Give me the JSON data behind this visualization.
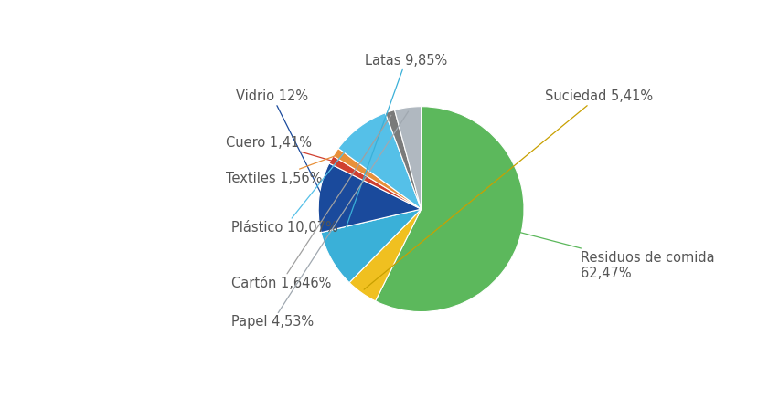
{
  "slices": [
    {
      "label": "Residuos de comida\n62,47%",
      "value": 62.47,
      "color": "#5cb85c",
      "line_color": "#5cb85c"
    },
    {
      "label": "Suciedad 5,41%",
      "value": 5.41,
      "color": "#f0c020",
      "line_color": "#c8a000"
    },
    {
      "label": "Latas 9,85%",
      "value": 9.85,
      "color": "#3ab0d8",
      "line_color": "#3ab0d8"
    },
    {
      "label": "Vidrio 12%",
      "value": 12.0,
      "color": "#1a4a9c",
      "line_color": "#1a4a9c"
    },
    {
      "label": "Cuero 1,41%",
      "value": 1.41,
      "color": "#d04030",
      "line_color": "#d04030"
    },
    {
      "label": "Textiles 1,56%",
      "value": 1.56,
      "color": "#e8903a",
      "line_color": "#e8903a"
    },
    {
      "label": "Plástico 10,07%",
      "value": 10.07,
      "color": "#55c0e8",
      "line_color": "#55c0e8"
    },
    {
      "label": "Cartón 1,646%",
      "value": 1.646,
      "color": "#7a7a7a",
      "line_color": "#a0a0a0"
    },
    {
      "label": "Papel 4,53%",
      "value": 4.53,
      "color": "#b0b8c0",
      "line_color": "#a0a8b0"
    }
  ],
  "background_color": "#ffffff",
  "text_color": "#555555",
  "font_size": 10.5,
  "startangle": 90
}
